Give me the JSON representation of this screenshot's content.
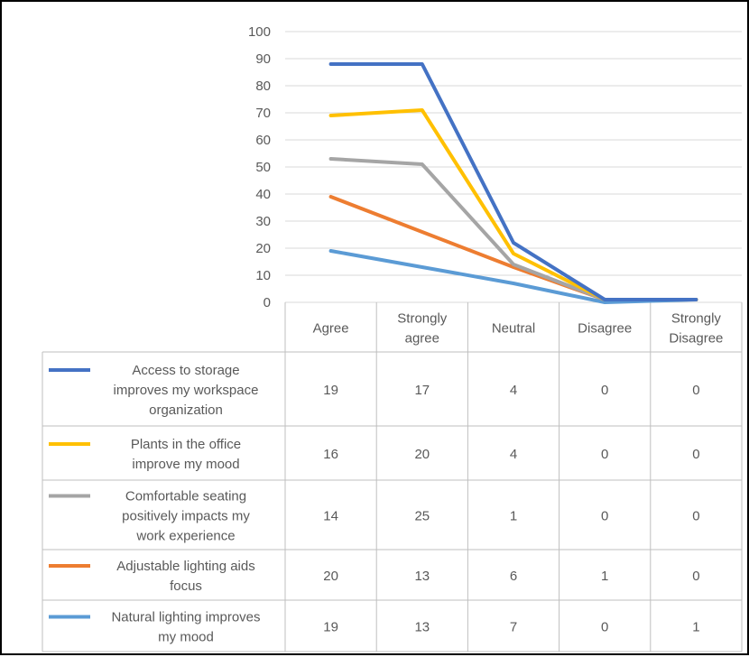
{
  "chart_data": {
    "type": "line",
    "title": "",
    "xlabel": "",
    "ylabel": "",
    "ylim": [
      0,
      100
    ],
    "y_ticks": [
      "0",
      "10",
      "20",
      "30",
      "40",
      "50",
      "60",
      "70",
      "80",
      "90",
      "100"
    ],
    "categories": [
      "Agree",
      "Strongly agree",
      "Neutral",
      "Disagree",
      "Strongly Disagree"
    ],
    "category_lines": [
      [
        "Agree"
      ],
      [
        "Strongly",
        "agree"
      ],
      [
        "Neutral"
      ],
      [
        "Disagree"
      ],
      [
        "Strongly",
        "Disagree"
      ]
    ],
    "grid": true,
    "legend": "data table",
    "series": [
      {
        "name": "Access to storage improves my workspace organization",
        "label_lines": [
          "Access to storage",
          "improves my workspace",
          "organization"
        ],
        "color": "#4472C4",
        "values": [
          88,
          88,
          22,
          1,
          1
        ],
        "table_values": [
          "19",
          "17",
          "4",
          "0",
          "0"
        ]
      },
      {
        "name": "Plants in the office improve my mood",
        "label_lines": [
          "Plants in the office",
          "improve my mood"
        ],
        "color": "#FFC000",
        "values": [
          69,
          71,
          18,
          1,
          1
        ],
        "table_values": [
          "16",
          "20",
          "4",
          "0",
          "0"
        ]
      },
      {
        "name": "Comfortable seating positively impacts my work experience",
        "label_lines": [
          "Comfortable seating",
          "positively impacts my",
          "work experience"
        ],
        "color": "#A5A5A5",
        "values": [
          53,
          51,
          14,
          1,
          1
        ],
        "table_values": [
          "14",
          "25",
          "1",
          "0",
          "0"
        ]
      },
      {
        "name": "Adjustable lighting aids focus",
        "label_lines": [
          "Adjustable lighting aids",
          "focus"
        ],
        "color": "#ED7D31",
        "values": [
          39,
          26,
          13,
          1,
          1
        ],
        "table_values": [
          "20",
          "13",
          "6",
          "1",
          "0"
        ]
      },
      {
        "name": "Natural lighting improves my mood",
        "label_lines": [
          "Natural lighting improves",
          "my mood"
        ],
        "color": "#5B9BD5",
        "values": [
          19,
          13,
          7,
          0,
          1
        ],
        "table_values": [
          "19",
          "13",
          "7",
          "0",
          "1"
        ]
      }
    ]
  }
}
